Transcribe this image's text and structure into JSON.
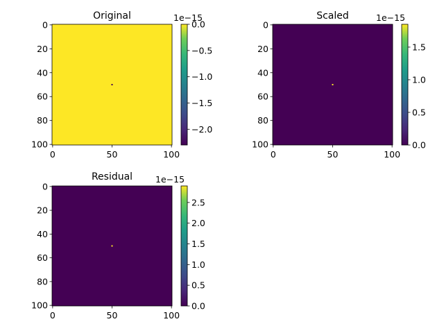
{
  "chart_data": [
    {
      "type": "heatmap",
      "title": "Original",
      "x_ticks": [
        0,
        50,
        100
      ],
      "y_ticks": [
        0,
        20,
        40,
        60,
        80,
        100
      ],
      "grid_shape": [
        101,
        101
      ],
      "background_value": 0,
      "point": {
        "x": 50,
        "y": 50,
        "value": -2.3e-15
      },
      "colormap": "viridis",
      "colorbar": {
        "offset_text": "1e−15",
        "min": -2.3,
        "max": 0.0,
        "ticks": [
          0.0,
          -0.5,
          -1.0,
          -1.5,
          -2.0
        ],
        "tick_labels": [
          "0.0",
          "−0.5",
          "−1.0",
          "−1.5",
          "−2.0"
        ]
      }
    },
    {
      "type": "heatmap",
      "title": "Scaled",
      "x_ticks": [
        0,
        50,
        100
      ],
      "y_ticks": [
        0,
        20,
        40,
        60,
        80,
        100
      ],
      "grid_shape": [
        101,
        101
      ],
      "background_value": 0,
      "point": {
        "x": 50,
        "y": 50,
        "value": 1.85e-15
      },
      "colormap": "viridis",
      "colorbar": {
        "offset_text": "1e−15",
        "min": 0.0,
        "max": 1.85,
        "ticks": [
          0.0,
          0.5,
          1.0,
          1.5
        ],
        "tick_labels": [
          "0.0",
          "0.5",
          "1.0",
          "1.5"
        ]
      }
    },
    {
      "type": "heatmap",
      "title": "Residual",
      "x_ticks": [
        0,
        50,
        100
      ],
      "y_ticks": [
        0,
        20,
        40,
        60,
        80,
        100
      ],
      "grid_shape": [
        101,
        101
      ],
      "background_value": 0,
      "point": {
        "x": 50,
        "y": 50,
        "value": 2.9e-15
      },
      "colormap": "viridis",
      "colorbar": {
        "offset_text": "1e−15",
        "min": 0.0,
        "max": 2.9,
        "ticks": [
          0.0,
          0.5,
          1.0,
          1.5,
          2.0,
          2.5
        ],
        "tick_labels": [
          "0.0",
          "0.5",
          "1.0",
          "1.5",
          "2.0",
          "2.5"
        ]
      }
    }
  ],
  "colors": {
    "viridis_low": "#440154",
    "viridis_high": "#fde725",
    "point_original": "#21918c",
    "point_scaled": "#5ec962",
    "point_residual": "#21918c"
  }
}
